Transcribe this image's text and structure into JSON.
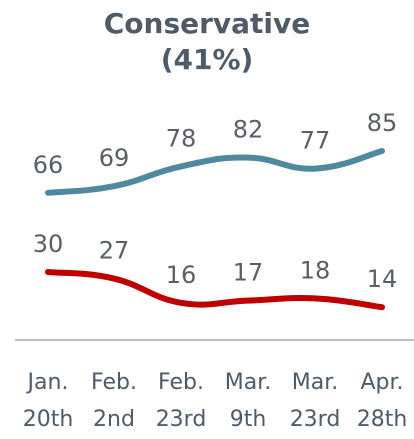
{
  "chart_data": {
    "type": "line",
    "title": "Conservative",
    "subtitle": "(41%)",
    "xlabel": "",
    "ylabel": "",
    "categories": [
      [
        "Jan.",
        "20th"
      ],
      [
        "Feb.",
        "2nd"
      ],
      [
        "Feb.",
        "23rd"
      ],
      [
        "Mar.",
        "9th"
      ],
      [
        "Mar.",
        "23rd"
      ],
      [
        "Apr.",
        "28th"
      ]
    ],
    "series": [
      {
        "values": [
          66,
          69,
          78,
          82,
          77,
          85
        ],
        "color": "#4f89a0"
      },
      {
        "values": [
          30,
          27,
          16,
          17,
          18,
          14
        ],
        "color": "#c00000"
      }
    ],
    "ylim": [
      0,
      100
    ],
    "grid": false,
    "legend": "none"
  }
}
